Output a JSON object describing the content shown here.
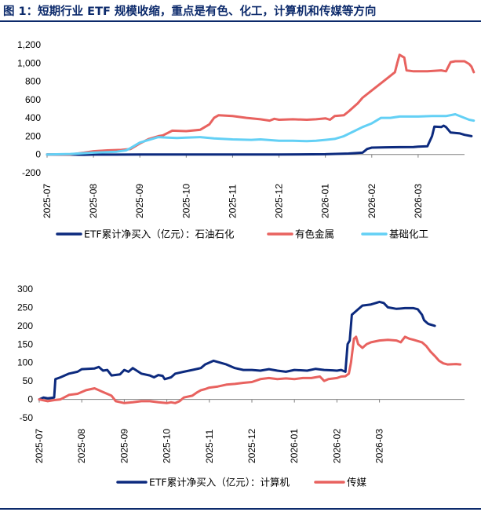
{
  "title": "图 1：短期行业 ETF 规模收缩，重点是有色、化工，计算机和传媒等方向",
  "chart_data": [
    {
      "type": "line",
      "x_labels": [
        "2025-07",
        "2025-08",
        "2025-09",
        "2025-10",
        "2025-11",
        "2025-12",
        "2026-01",
        "2026-02",
        "2026-03"
      ],
      "ylim": [
        -200,
        1200
      ],
      "yticks": [
        -200,
        0,
        200,
        400,
        600,
        800,
        1000,
        1200
      ],
      "ytick_labels": [
        "-200",
        "0",
        "200",
        "400",
        "600",
        "800",
        "1,000",
        "1,200"
      ],
      "series": [
        {
          "name": "ETF累计净买入（亿元）：石油石化",
          "color": "#0c2a7e",
          "points": [
            [
              0,
              0
            ],
            [
              0.4,
              -2
            ],
            [
              0.8,
              -3
            ],
            [
              1.0,
              -2
            ],
            [
              1.5,
              -2
            ],
            [
              2.0,
              0
            ],
            [
              2.5,
              0
            ],
            [
              3.0,
              0
            ],
            [
              4.0,
              0
            ],
            [
              5.0,
              0
            ],
            [
              6.0,
              3
            ],
            [
              6.5,
              10
            ],
            [
              6.8,
              20
            ],
            [
              6.9,
              60
            ],
            [
              7.0,
              75
            ],
            [
              7.3,
              78
            ],
            [
              7.6,
              80
            ],
            [
              7.9,
              82
            ],
            [
              8.0,
              85
            ],
            [
              8.2,
              90
            ],
            [
              8.3,
              200
            ],
            [
              8.35,
              305
            ],
            [
              8.5,
              300
            ],
            [
              8.55,
              315
            ],
            [
              8.6,
              300
            ],
            [
              8.7,
              240
            ],
            [
              8.9,
              230
            ],
            [
              9.0,
              215
            ],
            [
              9.15,
              200
            ]
          ]
        },
        {
          "name": "有色金属",
          "color": "#e8625f",
          "points": [
            [
              0,
              0
            ],
            [
              0.5,
              0
            ],
            [
              0.8,
              20
            ],
            [
              1.0,
              35
            ],
            [
              1.3,
              45
            ],
            [
              1.6,
              50
            ],
            [
              1.8,
              60
            ],
            [
              2.0,
              120
            ],
            [
              2.2,
              170
            ],
            [
              2.4,
              200
            ],
            [
              2.5,
              210
            ],
            [
              2.7,
              260
            ],
            [
              3.0,
              255
            ],
            [
              3.3,
              270
            ],
            [
              3.5,
              330
            ],
            [
              3.6,
              400
            ],
            [
              3.7,
              430
            ],
            [
              4.0,
              420
            ],
            [
              4.3,
              400
            ],
            [
              4.6,
              385
            ],
            [
              4.8,
              370
            ],
            [
              4.9,
              390
            ],
            [
              5.0,
              380
            ],
            [
              5.3,
              385
            ],
            [
              5.6,
              380
            ],
            [
              5.8,
              385
            ],
            [
              6.0,
              395
            ],
            [
              6.1,
              380
            ],
            [
              6.2,
              420
            ],
            [
              6.4,
              430
            ],
            [
              6.5,
              470
            ],
            [
              6.7,
              560
            ],
            [
              6.8,
              620
            ],
            [
              7.0,
              700
            ],
            [
              7.2,
              780
            ],
            [
              7.35,
              840
            ],
            [
              7.5,
              900
            ],
            [
              7.55,
              1000
            ],
            [
              7.6,
              1090
            ],
            [
              7.7,
              1060
            ],
            [
              7.75,
              920
            ],
            [
              7.9,
              910
            ],
            [
              8.2,
              910
            ],
            [
              8.5,
              920
            ],
            [
              8.6,
              910
            ],
            [
              8.7,
              1010
            ],
            [
              8.8,
              1020
            ],
            [
              9.0,
              1020
            ],
            [
              9.1,
              990
            ],
            [
              9.15,
              960
            ],
            [
              9.2,
              900
            ]
          ]
        },
        {
          "name": "基础化工",
          "color": "#63d0f5",
          "points": [
            [
              0,
              0
            ],
            [
              0.5,
              5
            ],
            [
              1.0,
              20
            ],
            [
              1.5,
              30
            ],
            [
              1.7,
              45
            ],
            [
              1.8,
              70
            ],
            [
              2.0,
              130
            ],
            [
              2.2,
              160
            ],
            [
              2.4,
              190
            ],
            [
              2.6,
              185
            ],
            [
              2.8,
              180
            ],
            [
              3.0,
              185
            ],
            [
              3.3,
              190
            ],
            [
              3.6,
              175
            ],
            [
              4.0,
              165
            ],
            [
              4.4,
              160
            ],
            [
              4.6,
              165
            ],
            [
              5.0,
              150
            ],
            [
              5.3,
              150
            ],
            [
              5.6,
              145
            ],
            [
              5.8,
              150
            ],
            [
              6.0,
              160
            ],
            [
              6.2,
              170
            ],
            [
              6.4,
              200
            ],
            [
              6.6,
              250
            ],
            [
              6.8,
              300
            ],
            [
              7.0,
              340
            ],
            [
              7.2,
              400
            ],
            [
              7.4,
              400
            ],
            [
              7.6,
              415
            ],
            [
              8.0,
              415
            ],
            [
              8.3,
              420
            ],
            [
              8.6,
              420
            ],
            [
              8.8,
              440
            ],
            [
              8.95,
              410
            ],
            [
              9.1,
              380
            ],
            [
              9.2,
              370
            ]
          ]
        }
      ]
    },
    {
      "type": "line",
      "x_labels": [
        "2025-07",
        "2025-08",
        "2025-09",
        "2025-10",
        "2025-11",
        "2025-12",
        "2026-01",
        "2026-02",
        "2026-03"
      ],
      "ylim": [
        -50,
        300
      ],
      "yticks": [
        -50,
        0,
        50,
        100,
        150,
        200,
        250,
        300
      ],
      "ytick_labels": [
        "-50",
        "0",
        "50",
        "100",
        "150",
        "200",
        "250",
        "300"
      ],
      "series": [
        {
          "name": "ETF累计净买入（亿元）：计算机",
          "color": "#0c2a7e",
          "points": [
            [
              0,
              0
            ],
            [
              0.1,
              5
            ],
            [
              0.2,
              3
            ],
            [
              0.35,
              5
            ],
            [
              0.38,
              55
            ],
            [
              0.5,
              60
            ],
            [
              0.7,
              70
            ],
            [
              0.9,
              75
            ],
            [
              1.0,
              82
            ],
            [
              1.3,
              84
            ],
            [
              1.4,
              88
            ],
            [
              1.5,
              78
            ],
            [
              1.6,
              80
            ],
            [
              1.7,
              65
            ],
            [
              1.9,
              68
            ],
            [
              2.0,
              80
            ],
            [
              2.1,
              75
            ],
            [
              2.2,
              85
            ],
            [
              2.4,
              70
            ],
            [
              2.6,
              65
            ],
            [
              2.7,
              60
            ],
            [
              2.8,
              66
            ],
            [
              2.9,
              64
            ],
            [
              2.95,
              55
            ],
            [
              3.1,
              60
            ],
            [
              3.2,
              70
            ],
            [
              3.4,
              75
            ],
            [
              3.6,
              80
            ],
            [
              3.8,
              85
            ],
            [
              3.9,
              95
            ],
            [
              4.0,
              100
            ],
            [
              4.1,
              105
            ],
            [
              4.4,
              95
            ],
            [
              4.6,
              85
            ],
            [
              4.8,
              80
            ],
            [
              5.0,
              80
            ],
            [
              5.2,
              78
            ],
            [
              5.4,
              82
            ],
            [
              5.6,
              78
            ],
            [
              5.8,
              75
            ],
            [
              6.0,
              80
            ],
            [
              6.3,
              78
            ],
            [
              6.5,
              83
            ],
            [
              6.7,
              80
            ],
            [
              6.9,
              79
            ],
            [
              7.0,
              78
            ],
            [
              7.1,
              80
            ],
            [
              7.2,
              75
            ],
            [
              7.25,
              150
            ],
            [
              7.3,
              160
            ],
            [
              7.35,
              230
            ],
            [
              7.4,
              235
            ],
            [
              7.5,
              245
            ],
            [
              7.6,
              255
            ],
            [
              7.8,
              258
            ],
            [
              8.0,
              265
            ],
            [
              8.1,
              262
            ],
            [
              8.2,
              250
            ],
            [
              8.4,
              246
            ],
            [
              8.6,
              248
            ],
            [
              8.8,
              248
            ],
            [
              8.9,
              245
            ],
            [
              9.0,
              230
            ],
            [
              9.05,
              215
            ],
            [
              9.1,
              210
            ],
            [
              9.15,
              205
            ],
            [
              9.3,
              200
            ]
          ]
        },
        {
          "name": "传媒",
          "color": "#e8625f",
          "points": [
            [
              0,
              0
            ],
            [
              0.2,
              -5
            ],
            [
              0.35,
              -2
            ],
            [
              0.5,
              0
            ],
            [
              0.7,
              12
            ],
            [
              0.9,
              15
            ],
            [
              1.1,
              25
            ],
            [
              1.3,
              30
            ],
            [
              1.5,
              20
            ],
            [
              1.7,
              10
            ],
            [
              1.8,
              -5
            ],
            [
              2.0,
              -10
            ],
            [
              2.2,
              -8
            ],
            [
              2.4,
              -5
            ],
            [
              2.6,
              -5
            ],
            [
              2.8,
              -8
            ],
            [
              3.0,
              -10
            ],
            [
              3.1,
              -8
            ],
            [
              3.2,
              -10
            ],
            [
              3.3,
              -5
            ],
            [
              3.4,
              5
            ],
            [
              3.6,
              10
            ],
            [
              3.7,
              18
            ],
            [
              3.8,
              25
            ],
            [
              3.9,
              28
            ],
            [
              4.0,
              32
            ],
            [
              4.2,
              35
            ],
            [
              4.4,
              40
            ],
            [
              4.6,
              42
            ],
            [
              4.8,
              45
            ],
            [
              5.0,
              47
            ],
            [
              5.2,
              55
            ],
            [
              5.4,
              58
            ],
            [
              5.6,
              55
            ],
            [
              5.8,
              57
            ],
            [
              6.0,
              55
            ],
            [
              6.2,
              58
            ],
            [
              6.4,
              58
            ],
            [
              6.6,
              62
            ],
            [
              6.7,
              50
            ],
            [
              6.8,
              55
            ],
            [
              7.0,
              58
            ],
            [
              7.1,
              62
            ],
            [
              7.2,
              63
            ],
            [
              7.28,
              70
            ],
            [
              7.33,
              100
            ],
            [
              7.4,
              165
            ],
            [
              7.45,
              170
            ],
            [
              7.5,
              150
            ],
            [
              7.6,
              140
            ],
            [
              7.7,
              150
            ],
            [
              7.8,
              155
            ],
            [
              8.0,
              160
            ],
            [
              8.2,
              162
            ],
            [
              8.4,
              160
            ],
            [
              8.5,
              155
            ],
            [
              8.6,
              170
            ],
            [
              8.7,
              165
            ],
            [
              8.8,
              162
            ],
            [
              9.0,
              155
            ],
            [
              9.1,
              145
            ],
            [
              9.2,
              130
            ],
            [
              9.3,
              118
            ],
            [
              9.4,
              105
            ],
            [
              9.5,
              98
            ],
            [
              9.6,
              95
            ],
            [
              9.8,
              96
            ],
            [
              9.9,
              95
            ]
          ]
        }
      ]
    }
  ]
}
